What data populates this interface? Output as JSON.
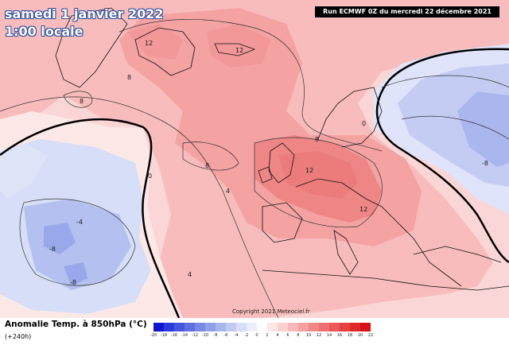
{
  "map": {
    "date_label": "samedi 1 janvier 2022",
    "time_label": "1:00 locale",
    "run_info": "Run ECMWF 0Z du mercredi 22 décembre 2021",
    "copyright": "Copyright 2021 Meteociel.fr"
  },
  "legend": {
    "title": "Anomalie Temp. à 850hPa (°C)",
    "lead_time": "(+240h)",
    "ticks": [
      "-20",
      "-18",
      "-16",
      "-14",
      "-12",
      "-10",
      "-8",
      "-6",
      "-4",
      "-2",
      "0",
      "2",
      "4",
      "6",
      "8",
      "10",
      "12",
      "14",
      "16",
      "18",
      "20",
      "22"
    ],
    "colors": [
      "#1414d0",
      "#2a3ad8",
      "#4456dc",
      "#5e70e0",
      "#7888e4",
      "#90a0e8",
      "#a8b6ee",
      "#c0caf2",
      "#d6def8",
      "#eceefc",
      "#ffffff",
      "#fde6e6",
      "#fbd0d0",
      "#f8b8b8",
      "#f6a0a0",
      "#f28888",
      "#ee7070",
      "#ea5858",
      "#e64040",
      "#e02828",
      "#d81414"
    ]
  },
  "contour_labels": [
    {
      "text": "12"
    },
    {
      "text": "12"
    },
    {
      "text": "12"
    },
    {
      "text": "12"
    },
    {
      "text": "8"
    },
    {
      "text": "8"
    },
    {
      "text": "8"
    },
    {
      "text": "8"
    },
    {
      "text": "4"
    },
    {
      "text": "4"
    },
    {
      "text": "0"
    },
    {
      "text": "0"
    },
    {
      "text": "-4"
    },
    {
      "text": "-8"
    },
    {
      "text": "-8"
    },
    {
      "text": "-8"
    }
  ]
}
